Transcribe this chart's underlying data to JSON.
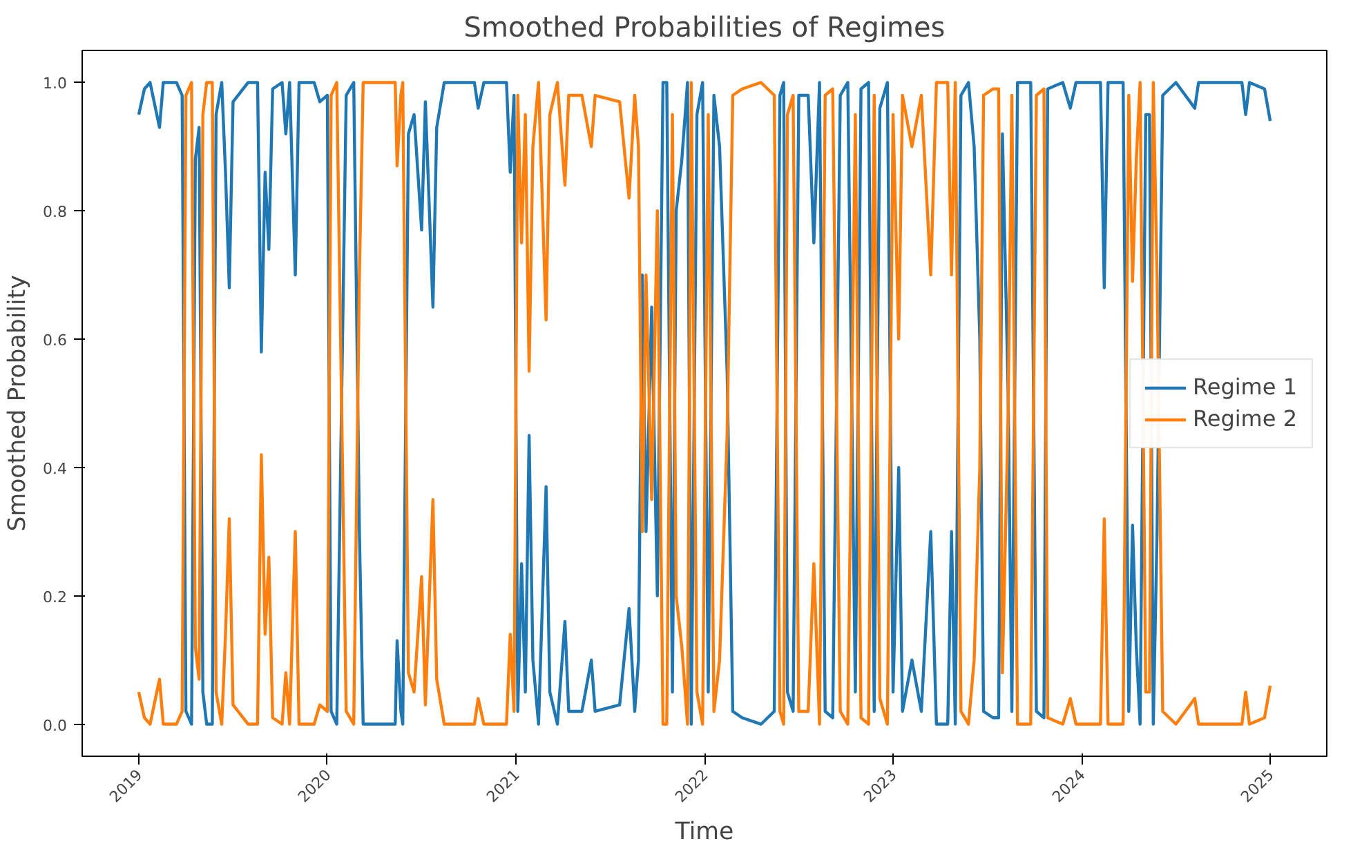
{
  "chart_data": {
    "type": "line",
    "title": "Smoothed Probabilities of Regimes",
    "xlabel": "Time",
    "ylabel": "Smoothed Probability",
    "x": [
      2019.0,
      2019.03,
      2019.06,
      2019.11,
      2019.13,
      2019.2,
      2019.23,
      2019.25,
      2019.28,
      2019.3,
      2019.32,
      2019.34,
      2019.36,
      2019.39,
      2019.41,
      2019.44,
      2019.46,
      2019.48,
      2019.5,
      2019.58,
      2019.63,
      2019.65,
      2019.67,
      2019.69,
      2019.71,
      2019.76,
      2019.78,
      2019.8,
      2019.83,
      2019.85,
      2019.93,
      2019.96,
      2020.0,
      2020.02,
      2020.05,
      2020.1,
      2020.14,
      2020.17,
      2020.19,
      2020.36,
      2020.37,
      2020.39,
      2020.4,
      2020.43,
      2020.46,
      2020.5,
      2020.52,
      2020.56,
      2020.58,
      2020.62,
      2020.78,
      2020.8,
      2020.83,
      2020.95,
      2020.97,
      2020.99,
      2021.01,
      2021.03,
      2021.05,
      2021.07,
      2021.09,
      2021.12,
      2021.16,
      2021.18,
      2021.22,
      2021.26,
      2021.28,
      2021.35,
      2021.4,
      2021.42,
      2021.55,
      2021.6,
      2021.63,
      2021.65,
      2021.67,
      2021.69,
      2021.72,
      2021.75,
      2021.78,
      2021.8,
      2021.83,
      2021.85,
      2021.88,
      2021.91,
      2021.93,
      2021.96,
      2021.99,
      2022.02,
      2022.05,
      2022.08,
      2022.12,
      2022.15,
      2022.2,
      2022.3,
      2022.37,
      2022.4,
      2022.42,
      2022.44,
      2022.47,
      2022.5,
      2022.55,
      2022.58,
      2022.61,
      2022.64,
      2022.68,
      2022.72,
      2022.76,
      2022.8,
      2022.83,
      2022.87,
      2022.9,
      2022.93,
      2022.97,
      2023.0,
      2023.03,
      2023.05,
      2023.1,
      2023.15,
      2023.2,
      2023.23,
      2023.29,
      2023.31,
      2023.33,
      2023.36,
      2023.4,
      2023.43,
      2023.46,
      2023.48,
      2023.53,
      2023.56,
      2023.58,
      2023.61,
      2023.63,
      2023.66,
      2023.73,
      2023.76,
      2023.8,
      2023.82,
      2023.9,
      2023.94,
      2023.97,
      2024.1,
      2024.12,
      2024.14,
      2024.22,
      2024.25,
      2024.27,
      2024.29,
      2024.31,
      2024.34,
      2024.36,
      2024.38,
      2024.4,
      2024.43,
      2024.5,
      2024.6,
      2024.62,
      2024.85,
      2024.87,
      2024.89,
      2024.97,
      2025.0
    ],
    "series": [
      {
        "name": "Regime 1",
        "color": "#1f77b4",
        "values": [
          0.95,
          0.99,
          1.0,
          0.93,
          1.0,
          1.0,
          0.98,
          0.02,
          0.0,
          0.88,
          0.93,
          0.05,
          0.0,
          0.0,
          0.95,
          1.0,
          0.86,
          0.68,
          0.97,
          1.0,
          1.0,
          0.58,
          0.86,
          0.74,
          0.99,
          1.0,
          0.92,
          1.0,
          0.7,
          1.0,
          1.0,
          0.97,
          0.98,
          0.02,
          0.0,
          0.98,
          1.0,
          0.3,
          0.0,
          0.0,
          0.13,
          0.02,
          0.0,
          0.92,
          0.95,
          0.77,
          0.97,
          0.65,
          0.93,
          1.0,
          1.0,
          0.96,
          1.0,
          1.0,
          0.86,
          0.98,
          0.02,
          0.25,
          0.05,
          0.45,
          0.1,
          0.0,
          0.37,
          0.05,
          0.0,
          0.16,
          0.02,
          0.02,
          0.1,
          0.02,
          0.03,
          0.18,
          0.02,
          0.1,
          0.7,
          0.3,
          0.65,
          0.2,
          1.0,
          1.0,
          0.05,
          0.8,
          0.88,
          1.0,
          0.0,
          0.95,
          1.0,
          0.05,
          0.98,
          0.9,
          0.55,
          0.02,
          0.01,
          0.0,
          0.02,
          0.98,
          1.0,
          0.05,
          0.02,
          0.98,
          0.98,
          0.75,
          1.0,
          0.02,
          0.01,
          0.98,
          1.0,
          0.05,
          0.99,
          1.0,
          0.02,
          0.96,
          1.0,
          0.05,
          0.4,
          0.02,
          0.1,
          0.02,
          0.3,
          0.0,
          0.0,
          0.3,
          0.0,
          0.98,
          1.0,
          0.9,
          0.6,
          0.02,
          0.01,
          0.01,
          0.92,
          0.52,
          0.02,
          1.0,
          1.0,
          0.02,
          0.01,
          0.99,
          1.0,
          0.96,
          1.0,
          1.0,
          0.68,
          1.0,
          1.0,
          0.02,
          0.31,
          0.12,
          0.0,
          0.95,
          0.95,
          0.0,
          0.3,
          0.98,
          1.0,
          0.96,
          1.0,
          1.0,
          0.95,
          1.0,
          0.99,
          0.94
        ]
      },
      {
        "name": "Regime 2",
        "color": "#ff7f0e",
        "values": [
          0.05,
          0.01,
          0.0,
          0.07,
          0.0,
          0.0,
          0.02,
          0.98,
          1.0,
          0.12,
          0.07,
          0.95,
          1.0,
          1.0,
          0.05,
          0.0,
          0.14,
          0.32,
          0.03,
          0.0,
          0.0,
          0.42,
          0.14,
          0.26,
          0.01,
          0.0,
          0.08,
          0.0,
          0.3,
          0.0,
          0.0,
          0.03,
          0.02,
          0.98,
          1.0,
          0.02,
          0.0,
          0.7,
          1.0,
          1.0,
          0.87,
          0.98,
          1.0,
          0.08,
          0.05,
          0.23,
          0.03,
          0.35,
          0.07,
          0.0,
          0.0,
          0.04,
          0.0,
          0.0,
          0.14,
          0.02,
          0.98,
          0.75,
          0.95,
          0.55,
          0.9,
          1.0,
          0.63,
          0.95,
          1.0,
          0.84,
          0.98,
          0.98,
          0.9,
          0.98,
          0.97,
          0.82,
          0.98,
          0.9,
          0.3,
          0.7,
          0.35,
          0.8,
          0.0,
          0.0,
          0.95,
          0.2,
          0.12,
          0.0,
          1.0,
          0.05,
          0.0,
          0.95,
          0.02,
          0.1,
          0.45,
          0.98,
          0.99,
          1.0,
          0.98,
          0.02,
          0.0,
          0.95,
          0.98,
          0.02,
          0.02,
          0.25,
          0.0,
          0.98,
          0.99,
          0.02,
          0.0,
          0.95,
          0.01,
          0.0,
          0.98,
          0.04,
          0.0,
          0.95,
          0.6,
          0.98,
          0.9,
          0.98,
          0.7,
          1.0,
          1.0,
          0.7,
          1.0,
          0.02,
          0.0,
          0.1,
          0.4,
          0.98,
          0.99,
          0.99,
          0.08,
          0.48,
          0.98,
          0.0,
          0.0,
          0.98,
          0.99,
          0.01,
          0.0,
          0.04,
          0.0,
          0.0,
          0.32,
          0.0,
          0.0,
          0.98,
          0.69,
          0.88,
          1.0,
          0.05,
          0.05,
          1.0,
          0.7,
          0.02,
          0.0,
          0.04,
          0.0,
          0.0,
          0.05,
          0.0,
          0.01,
          0.06
        ]
      }
    ],
    "xlim": [
      2018.7,
      2025.3
    ],
    "xticks": [
      2019,
      2020,
      2021,
      2022,
      2023,
      2024,
      2025
    ],
    "ylim": [
      -0.05,
      1.05
    ],
    "yticks": [
      {
        "value": 0,
        "label": "0.0"
      },
      {
        "value": 0.2,
        "label": "0.2"
      },
      {
        "value": 0.4,
        "label": "0.4"
      },
      {
        "value": 0.6,
        "label": "0.6"
      },
      {
        "value": 0.8,
        "label": "0.8"
      },
      {
        "value": 1,
        "label": "1.0"
      }
    ],
    "grid": false,
    "legend": "right",
    "marker": "none",
    "line_style": "solid"
  }
}
